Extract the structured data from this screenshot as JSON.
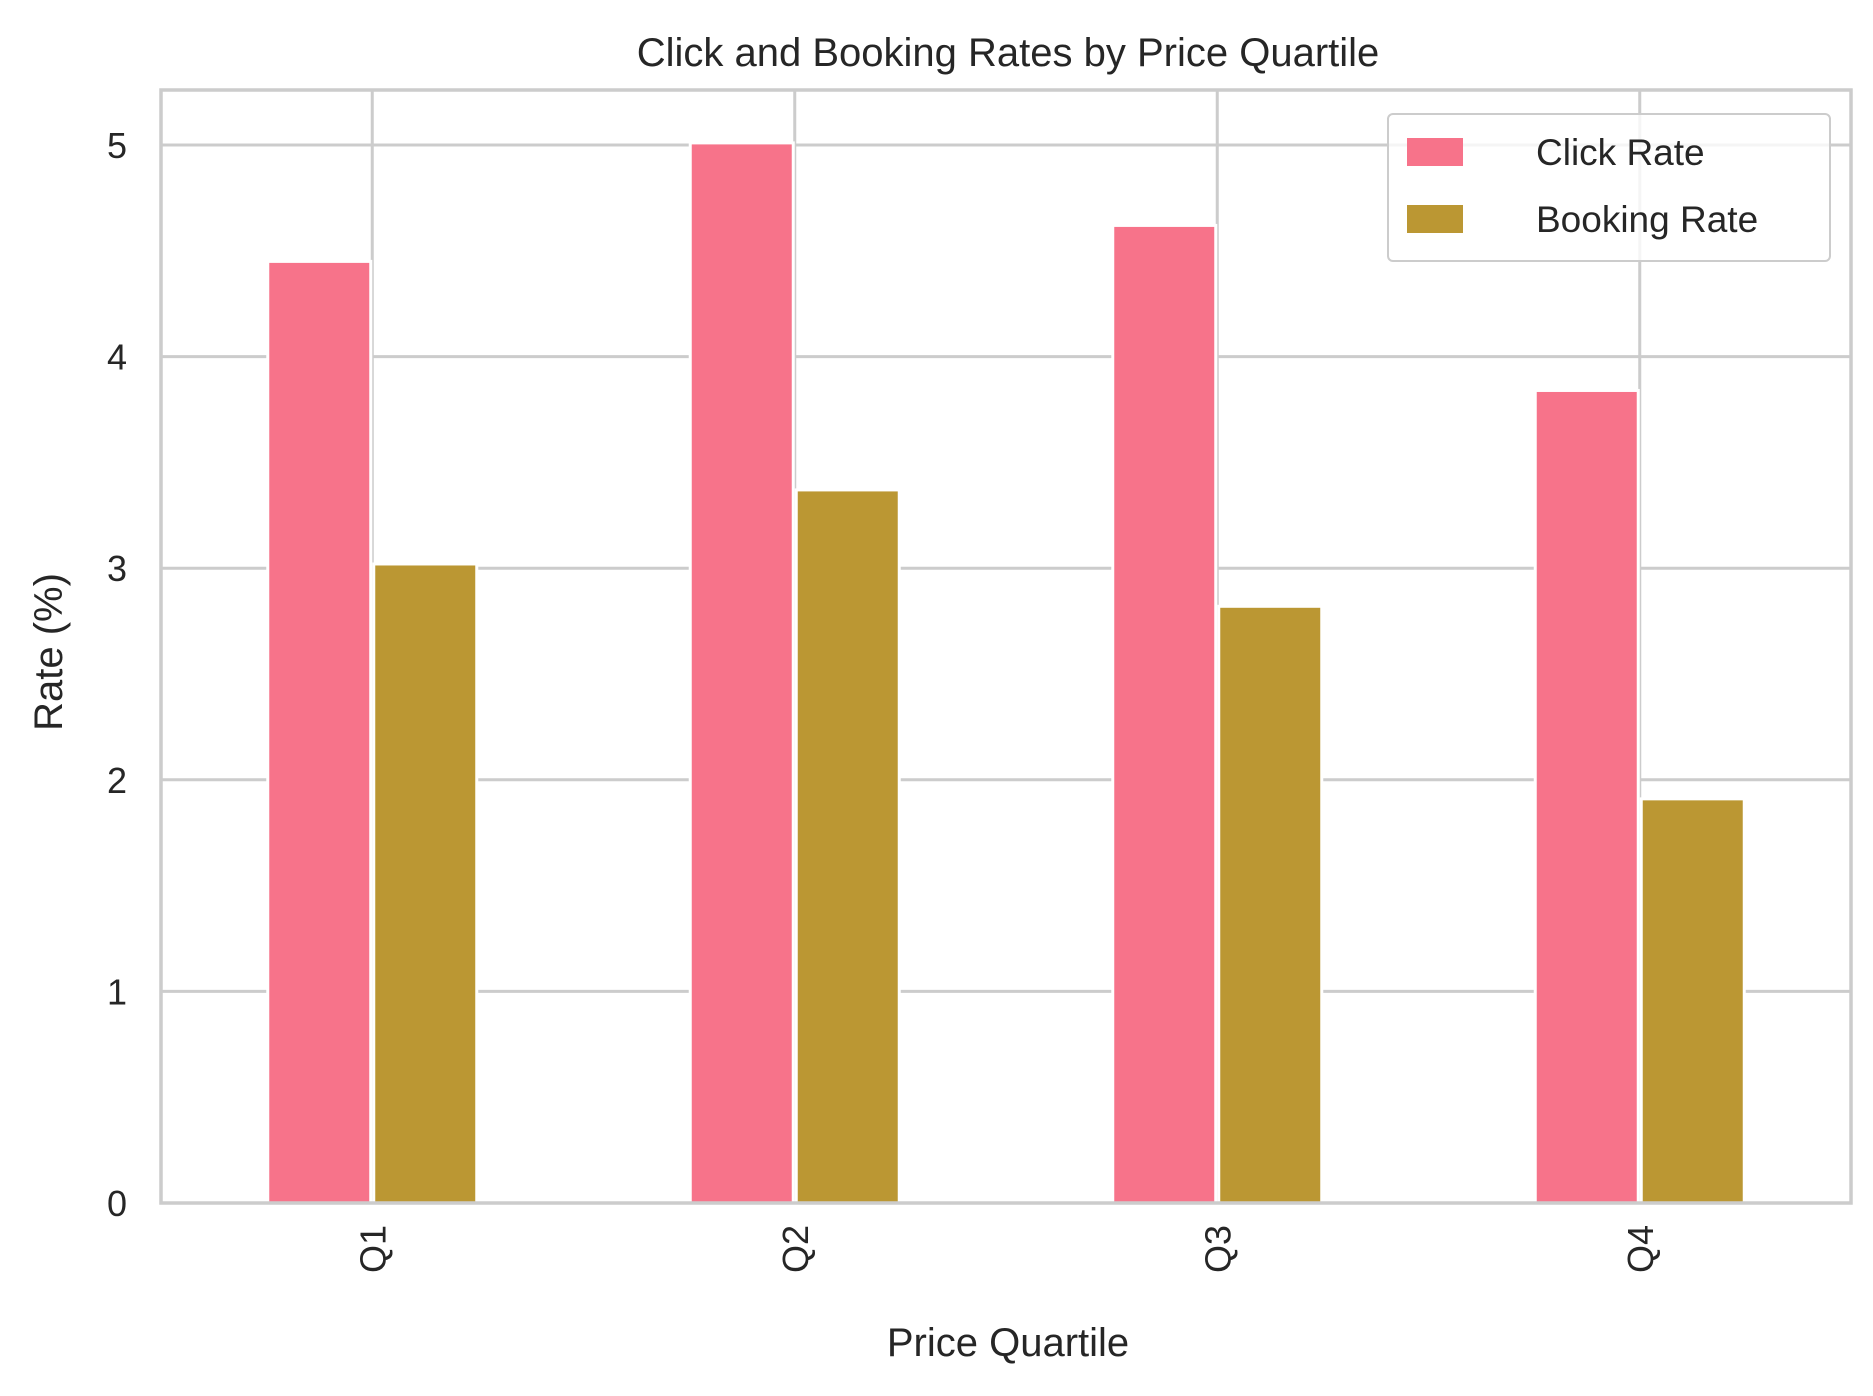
{
  "chart_data": {
    "type": "bar",
    "title": "Click and Booking Rates by Price Quartile",
    "xlabel": "Price Quartile",
    "ylabel": "Rate (%)",
    "categories": [
      "Q1",
      "Q2",
      "Q3",
      "Q4"
    ],
    "series": [
      {
        "name": "Click Rate",
        "values": [
          4.45,
          5.01,
          4.62,
          3.84
        ],
        "color": "#f7738a"
      },
      {
        "name": "Booking Rate",
        "values": [
          3.02,
          3.37,
          2.82,
          1.91
        ],
        "color": "#bb9733"
      }
    ],
    "ylim": [
      0,
      5.26
    ],
    "yticks": [
      0,
      1,
      2,
      3,
      4,
      5
    ],
    "grid": true,
    "legend_position": "top-right",
    "x_tick_rotation": "vertical",
    "colors": {
      "grid": "#cccccc",
      "spine": "#cccccc",
      "text": "#262626",
      "background": "#ffffff"
    }
  }
}
